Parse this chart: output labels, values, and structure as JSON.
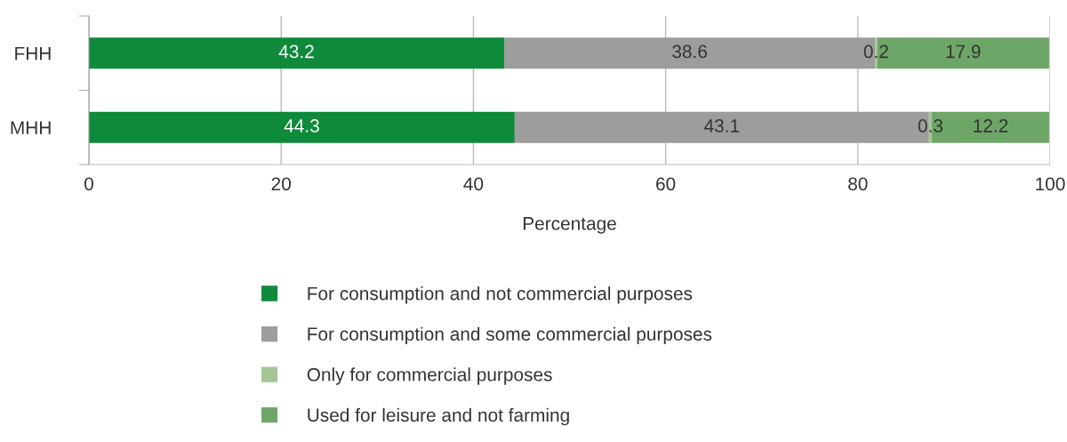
{
  "chart_data": {
    "type": "bar",
    "orientation": "horizontal",
    "stacked": true,
    "categories": [
      "FHH",
      "MHH"
    ],
    "series": [
      {
        "name": "For consumption and not commercial purposes",
        "color": "#0e8a3a",
        "values": [
          43.2,
          44.3
        ]
      },
      {
        "name": "For consumption and some commercial purposes",
        "color": "#9d9d9c",
        "values": [
          38.6,
          43.1
        ]
      },
      {
        "name": "Only for commercial purposes",
        "color": "#a3c596",
        "values": [
          0.2,
          0.3
        ]
      },
      {
        "name": "Used for leisure and not farming",
        "color": "#6ea667",
        "values": [
          17.9,
          12.2
        ]
      }
    ],
    "xlabel": "Percentage",
    "xlim": [
      0,
      100
    ],
    "xticks": [
      0,
      20,
      40,
      60,
      80,
      100
    ],
    "grid": "x",
    "legend": "bottom",
    "data_labels": true
  }
}
